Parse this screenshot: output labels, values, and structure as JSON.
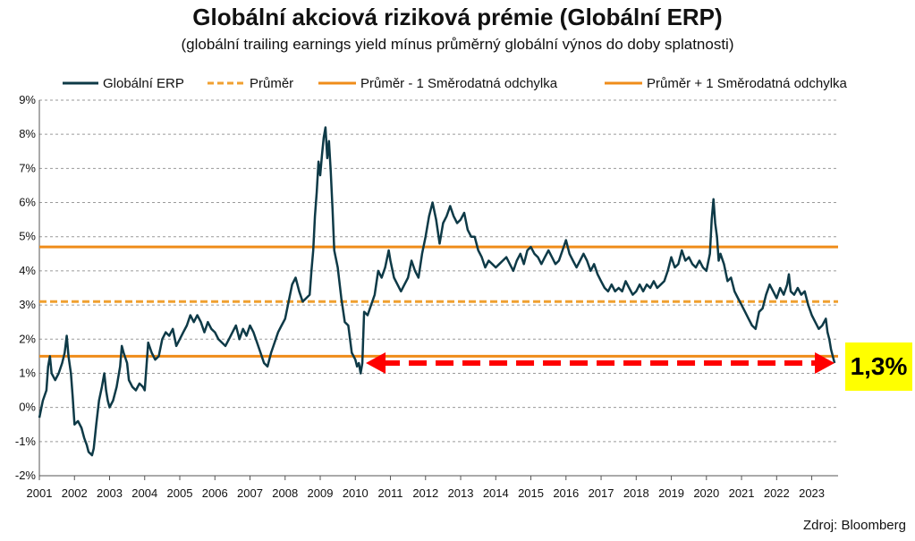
{
  "chart_data": {
    "type": "line",
    "title": "Globální akciová riziková prémie (Globální ERP)",
    "subtitle": "(globální trailing earnings yield mínus průměrný globální výnos do doby splatnosti)",
    "source": "Zdroj: Bloomberg",
    "callout": "1,3%",
    "xlabel": "",
    "ylabel": "",
    "xlim": [
      2001.0,
      2023.75
    ],
    "ylim": [
      -2,
      9
    ],
    "grid": true,
    "legend_position": "top",
    "x_ticks": [
      "2001",
      "2002",
      "2003",
      "2004",
      "2005",
      "2006",
      "2007",
      "2008",
      "2009",
      "2010",
      "2011",
      "2012",
      "2013",
      "2014",
      "2015",
      "2016",
      "2017",
      "2018",
      "2019",
      "2020",
      "2021",
      "2022",
      "2023"
    ],
    "y_ticks": [
      "-2%",
      "-1%",
      "0%",
      "1%",
      "2%",
      "3%",
      "4%",
      "5%",
      "6%",
      "7%",
      "8%",
      "9%"
    ],
    "series": [
      {
        "name": "Globální ERP",
        "color": "#0e3a47",
        "points": [
          [
            2001.0,
            -0.3
          ],
          [
            2001.1,
            0.2
          ],
          [
            2001.2,
            0.5
          ],
          [
            2001.25,
            1.2
          ],
          [
            2001.3,
            1.5
          ],
          [
            2001.35,
            1.0
          ],
          [
            2001.45,
            0.8
          ],
          [
            2001.55,
            1.0
          ],
          [
            2001.65,
            1.3
          ],
          [
            2001.72,
            1.6
          ],
          [
            2001.78,
            2.1
          ],
          [
            2001.83,
            1.5
          ],
          [
            2001.9,
            1.0
          ],
          [
            2001.95,
            0.3
          ],
          [
            2002.0,
            -0.5
          ],
          [
            2002.1,
            -0.4
          ],
          [
            2002.2,
            -0.6
          ],
          [
            2002.28,
            -0.9
          ],
          [
            2002.35,
            -1.1
          ],
          [
            2002.4,
            -1.3
          ],
          [
            2002.5,
            -1.4
          ],
          [
            2002.55,
            -1.2
          ],
          [
            2002.62,
            -0.5
          ],
          [
            2002.7,
            0.2
          ],
          [
            2002.78,
            0.6
          ],
          [
            2002.85,
            1.0
          ],
          [
            2002.9,
            0.5
          ],
          [
            2002.95,
            0.2
          ],
          [
            2003.0,
            0.0
          ],
          [
            2003.1,
            0.2
          ],
          [
            2003.2,
            0.6
          ],
          [
            2003.3,
            1.2
          ],
          [
            2003.35,
            1.8
          ],
          [
            2003.4,
            1.6
          ],
          [
            2003.5,
            1.3
          ],
          [
            2003.55,
            0.8
          ],
          [
            2003.65,
            0.6
          ],
          [
            2003.75,
            0.5
          ],
          [
            2003.85,
            0.7
          ],
          [
            2003.95,
            0.6
          ],
          [
            2004.0,
            0.5
          ],
          [
            2004.1,
            1.9
          ],
          [
            2004.2,
            1.6
          ],
          [
            2004.3,
            1.4
          ],
          [
            2004.4,
            1.5
          ],
          [
            2004.5,
            2.0
          ],
          [
            2004.6,
            2.2
          ],
          [
            2004.7,
            2.1
          ],
          [
            2004.8,
            2.3
          ],
          [
            2004.9,
            1.8
          ],
          [
            2005.0,
            2.0
          ],
          [
            2005.1,
            2.2
          ],
          [
            2005.2,
            2.4
          ],
          [
            2005.3,
            2.7
          ],
          [
            2005.4,
            2.5
          ],
          [
            2005.5,
            2.7
          ],
          [
            2005.6,
            2.5
          ],
          [
            2005.7,
            2.2
          ],
          [
            2005.8,
            2.5
          ],
          [
            2005.9,
            2.3
          ],
          [
            2006.0,
            2.2
          ],
          [
            2006.1,
            2.0
          ],
          [
            2006.2,
            1.9
          ],
          [
            2006.3,
            1.8
          ],
          [
            2006.4,
            2.0
          ],
          [
            2006.5,
            2.2
          ],
          [
            2006.6,
            2.4
          ],
          [
            2006.7,
            2.0
          ],
          [
            2006.8,
            2.3
          ],
          [
            2006.9,
            2.1
          ],
          [
            2007.0,
            2.4
          ],
          [
            2007.1,
            2.2
          ],
          [
            2007.2,
            1.9
          ],
          [
            2007.3,
            1.6
          ],
          [
            2007.4,
            1.3
          ],
          [
            2007.5,
            1.2
          ],
          [
            2007.6,
            1.6
          ],
          [
            2007.7,
            1.9
          ],
          [
            2007.8,
            2.2
          ],
          [
            2007.9,
            2.4
          ],
          [
            2008.0,
            2.6
          ],
          [
            2008.1,
            3.1
          ],
          [
            2008.2,
            3.6
          ],
          [
            2008.3,
            3.8
          ],
          [
            2008.4,
            3.4
          ],
          [
            2008.5,
            3.1
          ],
          [
            2008.6,
            3.2
          ],
          [
            2008.7,
            3.3
          ],
          [
            2008.75,
            4.0
          ],
          [
            2008.8,
            4.6
          ],
          [
            2008.85,
            5.6
          ],
          [
            2008.9,
            6.3
          ],
          [
            2008.95,
            7.2
          ],
          [
            2009.0,
            6.8
          ],
          [
            2009.05,
            7.4
          ],
          [
            2009.1,
            7.9
          ],
          [
            2009.15,
            8.2
          ],
          [
            2009.2,
            7.3
          ],
          [
            2009.25,
            7.8
          ],
          [
            2009.3,
            6.9
          ],
          [
            2009.35,
            5.8
          ],
          [
            2009.4,
            4.6
          ],
          [
            2009.5,
            4.1
          ],
          [
            2009.6,
            3.2
          ],
          [
            2009.7,
            2.5
          ],
          [
            2009.8,
            2.4
          ],
          [
            2009.9,
            1.6
          ],
          [
            2010.0,
            1.4
          ],
          [
            2010.05,
            1.2
          ],
          [
            2010.1,
            1.3
          ],
          [
            2010.15,
            1.0
          ],
          [
            2010.2,
            1.3
          ],
          [
            2010.25,
            2.8
          ],
          [
            2010.35,
            2.7
          ],
          [
            2010.45,
            3.0
          ],
          [
            2010.55,
            3.3
          ],
          [
            2010.65,
            4.0
          ],
          [
            2010.75,
            3.8
          ],
          [
            2010.85,
            4.1
          ],
          [
            2010.95,
            4.6
          ],
          [
            2011.0,
            4.3
          ],
          [
            2011.1,
            3.8
          ],
          [
            2011.2,
            3.6
          ],
          [
            2011.3,
            3.4
          ],
          [
            2011.4,
            3.6
          ],
          [
            2011.5,
            3.8
          ],
          [
            2011.6,
            4.3
          ],
          [
            2011.7,
            4.0
          ],
          [
            2011.8,
            3.8
          ],
          [
            2011.9,
            4.5
          ],
          [
            2012.0,
            5.0
          ],
          [
            2012.1,
            5.6
          ],
          [
            2012.2,
            6.0
          ],
          [
            2012.3,
            5.5
          ],
          [
            2012.4,
            4.8
          ],
          [
            2012.5,
            5.4
          ],
          [
            2012.6,
            5.6
          ],
          [
            2012.7,
            5.9
          ],
          [
            2012.8,
            5.6
          ],
          [
            2012.9,
            5.4
          ],
          [
            2013.0,
            5.5
          ],
          [
            2013.1,
            5.7
          ],
          [
            2013.2,
            5.2
          ],
          [
            2013.3,
            5.0
          ],
          [
            2013.4,
            5.0
          ],
          [
            2013.5,
            4.6
          ],
          [
            2013.6,
            4.4
          ],
          [
            2013.7,
            4.1
          ],
          [
            2013.8,
            4.3
          ],
          [
            2013.9,
            4.2
          ],
          [
            2014.0,
            4.1
          ],
          [
            2014.1,
            4.2
          ],
          [
            2014.2,
            4.3
          ],
          [
            2014.3,
            4.4
          ],
          [
            2014.4,
            4.2
          ],
          [
            2014.5,
            4.0
          ],
          [
            2014.6,
            4.3
          ],
          [
            2014.7,
            4.5
          ],
          [
            2014.8,
            4.2
          ],
          [
            2014.9,
            4.6
          ],
          [
            2015.0,
            4.7
          ],
          [
            2015.1,
            4.5
          ],
          [
            2015.2,
            4.4
          ],
          [
            2015.3,
            4.2
          ],
          [
            2015.4,
            4.4
          ],
          [
            2015.5,
            4.6
          ],
          [
            2015.6,
            4.4
          ],
          [
            2015.7,
            4.2
          ],
          [
            2015.8,
            4.3
          ],
          [
            2015.9,
            4.6
          ],
          [
            2016.0,
            4.9
          ],
          [
            2016.1,
            4.5
          ],
          [
            2016.2,
            4.3
          ],
          [
            2016.3,
            4.1
          ],
          [
            2016.4,
            4.3
          ],
          [
            2016.5,
            4.5
          ],
          [
            2016.6,
            4.3
          ],
          [
            2016.7,
            4.0
          ],
          [
            2016.8,
            4.2
          ],
          [
            2016.9,
            3.9
          ],
          [
            2017.0,
            3.7
          ],
          [
            2017.1,
            3.5
          ],
          [
            2017.2,
            3.4
          ],
          [
            2017.3,
            3.6
          ],
          [
            2017.4,
            3.4
          ],
          [
            2017.5,
            3.5
          ],
          [
            2017.6,
            3.4
          ],
          [
            2017.7,
            3.7
          ],
          [
            2017.8,
            3.5
          ],
          [
            2017.9,
            3.3
          ],
          [
            2018.0,
            3.4
          ],
          [
            2018.1,
            3.6
          ],
          [
            2018.2,
            3.4
          ],
          [
            2018.3,
            3.6
          ],
          [
            2018.4,
            3.5
          ],
          [
            2018.5,
            3.7
          ],
          [
            2018.6,
            3.5
          ],
          [
            2018.7,
            3.6
          ],
          [
            2018.8,
            3.7
          ],
          [
            2018.9,
            4.0
          ],
          [
            2019.0,
            4.4
          ],
          [
            2019.1,
            4.1
          ],
          [
            2019.2,
            4.2
          ],
          [
            2019.3,
            4.6
          ],
          [
            2019.4,
            4.3
          ],
          [
            2019.5,
            4.4
          ],
          [
            2019.6,
            4.2
          ],
          [
            2019.7,
            4.1
          ],
          [
            2019.8,
            4.3
          ],
          [
            2019.9,
            4.1
          ],
          [
            2020.0,
            4.0
          ],
          [
            2020.1,
            4.5
          ],
          [
            2020.15,
            5.5
          ],
          [
            2020.2,
            6.1
          ],
          [
            2020.25,
            5.4
          ],
          [
            2020.3,
            5.0
          ],
          [
            2020.35,
            4.3
          ],
          [
            2020.4,
            4.5
          ],
          [
            2020.5,
            4.2
          ],
          [
            2020.6,
            3.7
          ],
          [
            2020.7,
            3.8
          ],
          [
            2020.8,
            3.4
          ],
          [
            2020.9,
            3.2
          ],
          [
            2021.0,
            3.0
          ],
          [
            2021.1,
            2.8
          ],
          [
            2021.2,
            2.6
          ],
          [
            2021.3,
            2.4
          ],
          [
            2021.4,
            2.3
          ],
          [
            2021.5,
            2.8
          ],
          [
            2021.6,
            2.9
          ],
          [
            2021.7,
            3.3
          ],
          [
            2021.8,
            3.6
          ],
          [
            2021.9,
            3.4
          ],
          [
            2022.0,
            3.2
          ],
          [
            2022.1,
            3.5
          ],
          [
            2022.2,
            3.3
          ],
          [
            2022.3,
            3.6
          ],
          [
            2022.35,
            3.9
          ],
          [
            2022.4,
            3.4
          ],
          [
            2022.5,
            3.3
          ],
          [
            2022.6,
            3.5
          ],
          [
            2022.7,
            3.3
          ],
          [
            2022.8,
            3.4
          ],
          [
            2022.9,
            3.0
          ],
          [
            2023.0,
            2.7
          ],
          [
            2023.1,
            2.5
          ],
          [
            2023.2,
            2.3
          ],
          [
            2023.3,
            2.4
          ],
          [
            2023.4,
            2.6
          ],
          [
            2023.45,
            2.2
          ],
          [
            2023.5,
            2.0
          ],
          [
            2023.55,
            1.7
          ],
          [
            2023.6,
            1.5
          ],
          [
            2023.65,
            1.3
          ]
        ]
      },
      {
        "name": "Průměr",
        "color": "#f0a030",
        "style": "dashed",
        "value": 3.1
      },
      {
        "name": "Průměr - 1 Směrodatná odchylka",
        "color": "#ef8c1a",
        "style": "solid",
        "value": 1.5
      },
      {
        "name": "Průměr + 1 Směrodatná odchylka",
        "color": "#ef8c1a",
        "style": "solid",
        "value": 4.7
      }
    ],
    "annotation": {
      "type": "double-arrow",
      "color": "#ff0000",
      "style": "dashed",
      "x_start": 2010.3,
      "x_end": 2023.65,
      "y": 1.3
    }
  }
}
